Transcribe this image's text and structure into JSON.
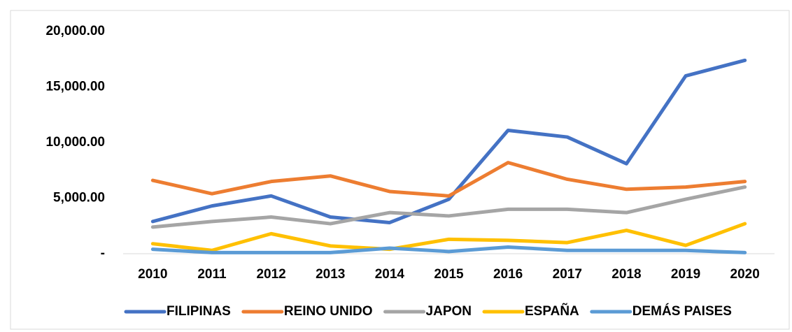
{
  "chart_data": {
    "type": "line",
    "categories": [
      "2010",
      "2011",
      "2012",
      "2013",
      "2014",
      "2015",
      "2016",
      "2017",
      "2018",
      "2019",
      "2020"
    ],
    "series": [
      {
        "name": "FILIPINAS",
        "color": "#4472c4",
        "values": [
          2900,
          4300,
          5200,
          3300,
          2800,
          4900,
          11100,
          10500,
          8100,
          16000,
          17400
        ]
      },
      {
        "name": "REINO UNIDO",
        "color": "#ed7d31",
        "values": [
          6600,
          5400,
          6500,
          7000,
          5600,
          5200,
          8200,
          6700,
          5800,
          6000,
          6500
        ]
      },
      {
        "name": "JAPON",
        "color": "#a5a5a5",
        "values": [
          2400,
          2900,
          3300,
          2700,
          3700,
          3400,
          4000,
          4000,
          3700,
          4900,
          6000
        ]
      },
      {
        "name": "ESPAÑA",
        "color": "#ffc000",
        "values": [
          900,
          300,
          1800,
          700,
          400,
          1300,
          1200,
          1000,
          2100,
          750,
          2700
        ]
      },
      {
        "name": "DEMÁS PAISES",
        "color": "#5b9bd5",
        "values": [
          400,
          100,
          100,
          100,
          500,
          200,
          600,
          300,
          300,
          300,
          100
        ]
      }
    ],
    "ylim": [
      0,
      20000
    ],
    "yticks": [
      {
        "value": 0,
        "label": "-"
      },
      {
        "value": 5000,
        "label": "5,000.00"
      },
      {
        "value": 10000,
        "label": "10,000.00"
      },
      {
        "value": 15000,
        "label": "15,000.00"
      },
      {
        "value": 20000,
        "label": "20,000.00"
      }
    ],
    "grid": false,
    "legend": "bottom"
  }
}
